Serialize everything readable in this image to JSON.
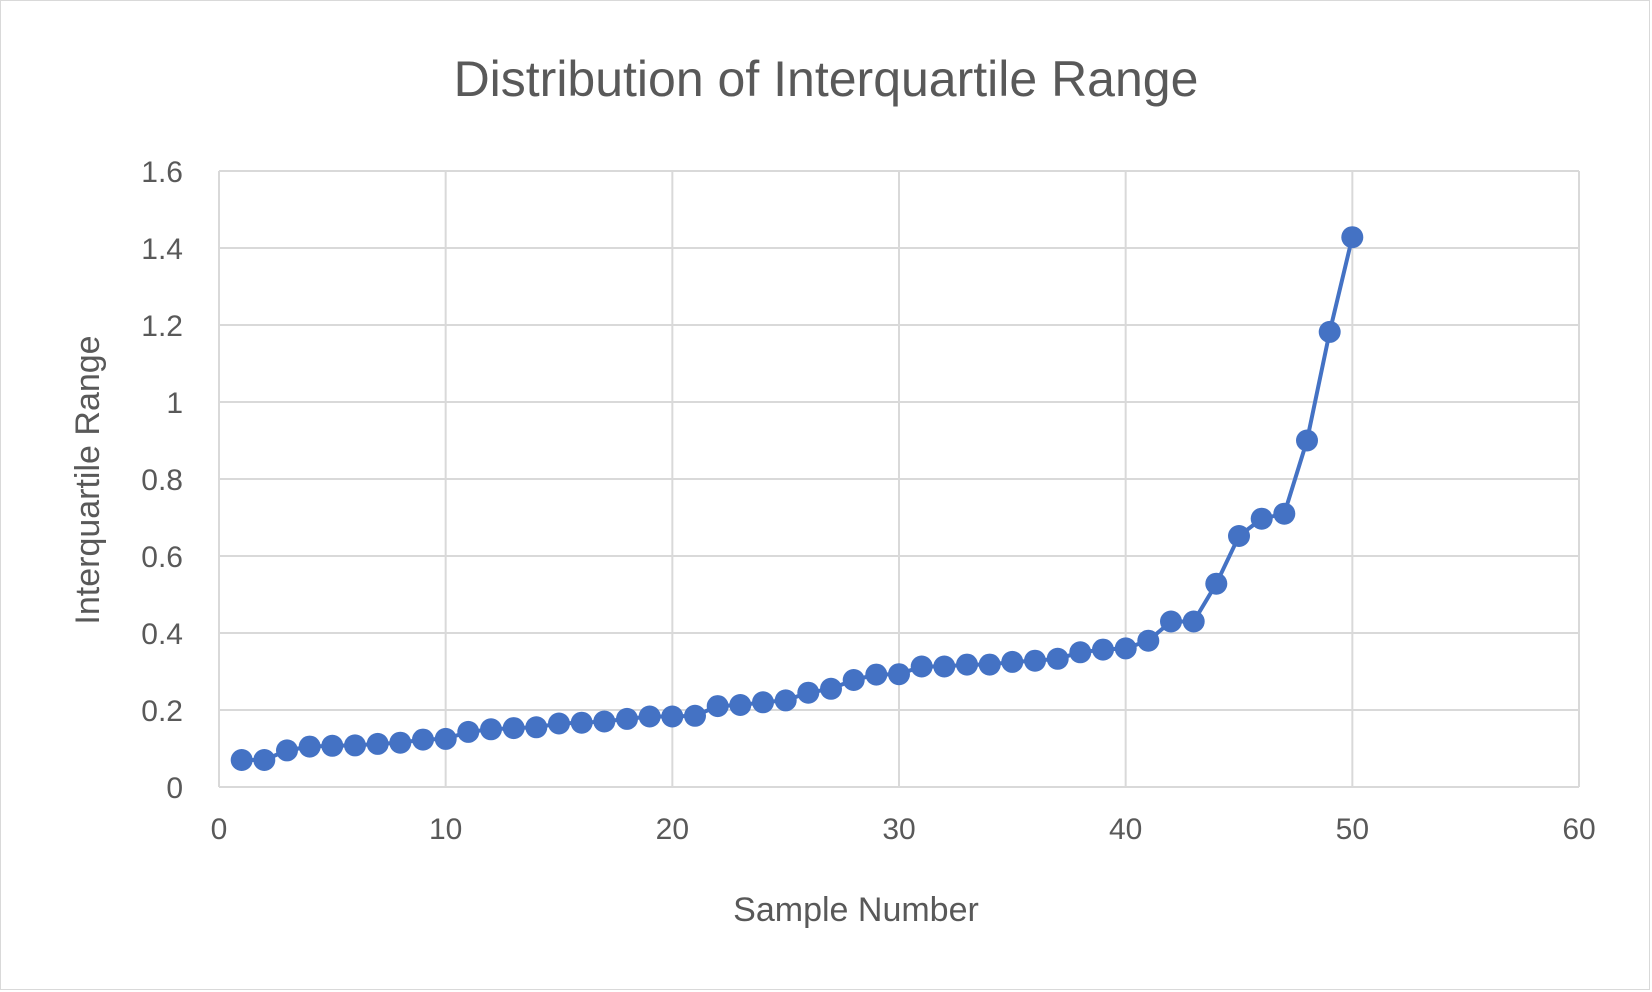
{
  "chart_data": {
    "type": "scatter",
    "title": "Distribution of Interquartile Range",
    "xlabel": "Sample Number",
    "ylabel": "Interquartile Range",
    "xlim": [
      0,
      60
    ],
    "ylim": [
      0,
      1.6
    ],
    "xticks": [
      "0",
      "10",
      "20",
      "30",
      "40",
      "50",
      "60"
    ],
    "yticks": [
      "0",
      "0.2",
      "0.4",
      "0.6",
      "0.8",
      "1",
      "1.2",
      "1.4",
      "1.6"
    ],
    "grid": true,
    "legend": "none",
    "markers": "filled-circle",
    "connected": true,
    "color": "#4472c4",
    "series": [
      {
        "x": [
          1,
          2,
          3,
          4,
          5,
          6,
          7,
          8,
          9,
          10,
          11,
          12,
          13,
          14,
          15,
          16,
          17,
          18,
          19,
          20,
          21,
          22,
          23,
          24,
          25,
          26,
          27,
          28,
          29,
          30,
          31,
          32,
          33,
          34,
          35,
          36,
          37,
          38,
          39,
          40,
          41,
          42,
          43,
          44,
          45,
          46,
          47,
          48,
          49,
          50
        ],
        "values": [
          0.07,
          0.07,
          0.095,
          0.105,
          0.107,
          0.108,
          0.112,
          0.115,
          0.123,
          0.125,
          0.143,
          0.15,
          0.153,
          0.155,
          0.165,
          0.167,
          0.17,
          0.177,
          0.183,
          0.183,
          0.185,
          0.21,
          0.213,
          0.22,
          0.225,
          0.245,
          0.255,
          0.278,
          0.292,
          0.293,
          0.313,
          0.313,
          0.318,
          0.318,
          0.325,
          0.328,
          0.333,
          0.35,
          0.357,
          0.36,
          0.38,
          0.43,
          0.43,
          0.528,
          0.652,
          0.697,
          0.71,
          0.9,
          1.182,
          1.428
        ]
      }
    ]
  }
}
